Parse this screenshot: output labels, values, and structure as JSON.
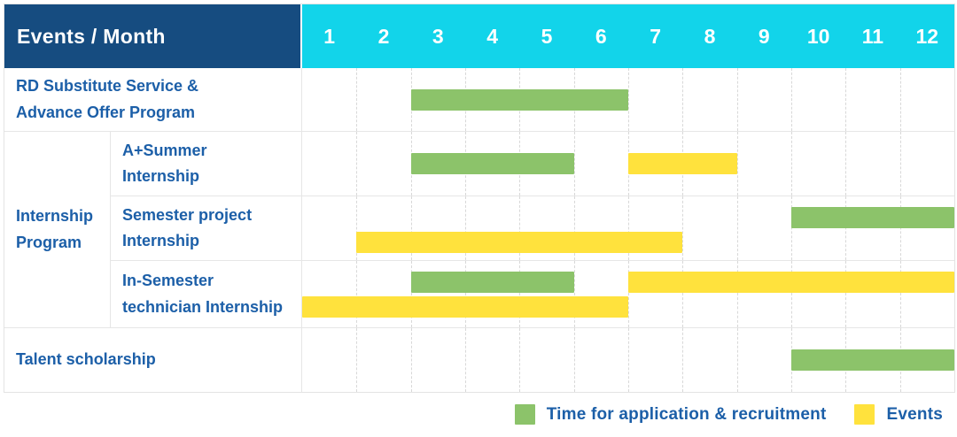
{
  "header": {
    "title": "Events / Month"
  },
  "colors": {
    "header_navy": "#164C80",
    "header_cyan": "#12D4EA",
    "label_blue": "#1C5FA8",
    "bar_green": "#8CC36A",
    "bar_yellow": "#FFE23D",
    "grid_line": "#E6E6E6"
  },
  "chart_data": {
    "type": "gantt",
    "x_axis_label": "Month",
    "months": [
      "1",
      "2",
      "3",
      "4",
      "5",
      "6",
      "7",
      "8",
      "9",
      "10",
      "11",
      "12"
    ],
    "x_range": [
      1,
      12
    ],
    "grid": "dashed-vertical-month-lines",
    "legend_position": "bottom-right",
    "tasks": [
      {
        "label": "RD Substitute Service &\nAdvance Offer Program",
        "group": null,
        "bars": [
          {
            "type": "application",
            "start_month": 3,
            "end_month": 6,
            "band": "center"
          }
        ]
      },
      {
        "label": "A+Summer\nInternship",
        "group": "Internship\nProgram",
        "bars": [
          {
            "type": "application",
            "start_month": 3,
            "end_month": 5,
            "band": "center"
          },
          {
            "type": "event",
            "start_month": 7,
            "end_month": 8,
            "band": "center"
          }
        ]
      },
      {
        "label": "Semester project\nInternship",
        "group": "Internship\nProgram",
        "bars": [
          {
            "type": "application",
            "start_month": 10,
            "end_month": 12,
            "band": "upper"
          },
          {
            "type": "event",
            "start_month": 2,
            "end_month": 7,
            "band": "lower"
          }
        ]
      },
      {
        "label": "In-Semester\ntechnician Internship",
        "group": "Internship\nProgram",
        "bars": [
          {
            "type": "application",
            "start_month": 3,
            "end_month": 5,
            "band": "upper"
          },
          {
            "type": "event",
            "start_month": 7,
            "end_month": 12,
            "band": "upper"
          },
          {
            "type": "event",
            "start_month": 1,
            "end_month": 6,
            "band": "lower"
          }
        ]
      },
      {
        "label": "Talent scholarship",
        "group": null,
        "bars": [
          {
            "type": "application",
            "start_month": 10,
            "end_month": 12,
            "band": "center"
          }
        ]
      }
    ],
    "legend": [
      {
        "key": "application",
        "label": "Time for application & recruitment",
        "color": "#8CC36A"
      },
      {
        "key": "event",
        "label": "Events",
        "color": "#FFE23D"
      }
    ]
  }
}
